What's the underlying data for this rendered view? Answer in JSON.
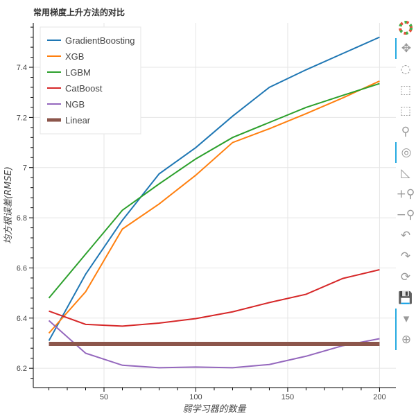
{
  "chart_data": {
    "type": "line",
    "title": "常用梯度上升方法的对比",
    "xlabel": "弱学习器的数量",
    "ylabel": "均方根误差(RMSE)",
    "xlim": [
      11.5,
      208.9
    ],
    "ylim": [
      6.123,
      7.577
    ],
    "x_ticks": [
      50,
      100,
      150,
      200
    ],
    "y_ticks": [
      6.2,
      6.4,
      6.6,
      6.8,
      7,
      7.2,
      7.4
    ],
    "x_tick_labels": [
      "50",
      "100",
      "150",
      "200"
    ],
    "y_tick_labels": [
      "6.2",
      "6.4",
      "6.6",
      "6.8",
      "7",
      "7.2",
      "7.4"
    ],
    "grid": true,
    "legend_position": "top-left",
    "x": [
      20,
      40,
      60,
      80,
      100,
      120,
      140,
      160,
      180,
      200
    ],
    "series": [
      {
        "name": "GradientBoosting",
        "color": "#1f77b4",
        "values": [
          6.31,
          6.575,
          6.79,
          6.975,
          7.08,
          7.205,
          7.32,
          7.39,
          7.455,
          7.52
        ]
      },
      {
        "name": "XGB",
        "color": "#ff7f0e",
        "values": [
          6.34,
          6.505,
          6.755,
          6.855,
          6.97,
          7.1,
          7.155,
          7.215,
          7.278,
          7.345
        ]
      },
      {
        "name": "LGBM",
        "color": "#2ca02c",
        "values": [
          6.48,
          6.655,
          6.83,
          6.935,
          7.035,
          7.12,
          7.18,
          7.24,
          7.288,
          7.335
        ]
      },
      {
        "name": "CatBoost",
        "color": "#d62728",
        "values": [
          6.428,
          6.375,
          6.368,
          6.38,
          6.398,
          6.425,
          6.462,
          6.495,
          6.558,
          6.593
        ]
      },
      {
        "name": "NGB",
        "color": "#9467bd",
        "values": [
          6.39,
          6.26,
          6.212,
          6.202,
          6.205,
          6.202,
          6.215,
          6.248,
          6.29,
          6.318
        ]
      },
      {
        "name": "Linear",
        "color": "#8c564b",
        "thick": true,
        "values": [
          6.297,
          6.297,
          6.297,
          6.297,
          6.297,
          6.297,
          6.297,
          6.297,
          6.297,
          6.297
        ]
      }
    ]
  },
  "toolbar": {
    "tools": [
      {
        "name": "pan-tool",
        "glyph": "✥",
        "active": true
      },
      {
        "name": "lasso-select-tool",
        "glyph": "◌",
        "active": false
      },
      {
        "name": "box-zoom-tool",
        "glyph": "⬚",
        "active": false
      },
      {
        "name": "box-select-tool",
        "glyph": "⬚",
        "active": false
      },
      {
        "name": "zoom-in-out-tool",
        "glyph": "⚲",
        "active": false
      },
      {
        "name": "wheel-zoom-tool",
        "glyph": "◎",
        "active": true
      },
      {
        "name": "poly-select-tool",
        "glyph": "◺",
        "active": false
      },
      {
        "name": "zoom-in-tool",
        "glyph": "+⚲",
        "active": false
      },
      {
        "name": "zoom-out-tool",
        "glyph": "−⚲",
        "active": false
      },
      {
        "name": "undo-tool",
        "glyph": "↶",
        "active": false
      },
      {
        "name": "redo-tool",
        "glyph": "↷",
        "active": false
      },
      {
        "name": "reset-tool",
        "glyph": "⟳",
        "active": false
      },
      {
        "name": "save-tool",
        "glyph": "💾",
        "active": false
      },
      {
        "name": "hover-tool",
        "glyph": "▾",
        "active": true
      },
      {
        "name": "crosshair-tool",
        "glyph": "⊕",
        "active": true
      }
    ]
  }
}
